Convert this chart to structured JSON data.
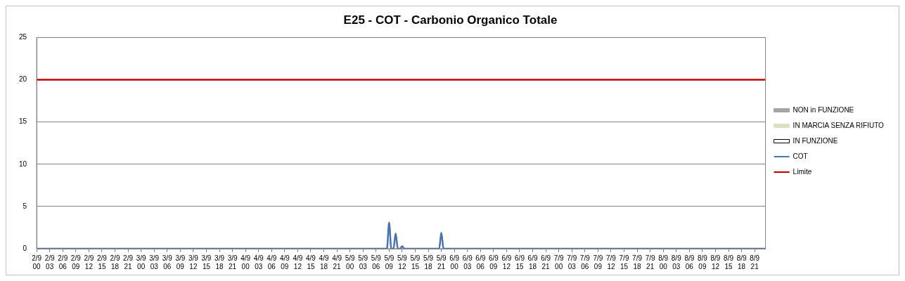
{
  "chart_data": {
    "type": "line",
    "title": "E25 - COT - Carbonio Organico Totale",
    "categories": [
      "2/9\n00",
      null,
      null,
      null,
      null,
      null,
      "2/9\n03",
      null,
      null,
      null,
      null,
      null,
      "2/9\n06",
      null,
      null,
      null,
      null,
      null,
      "2/9\n09",
      null,
      null,
      null,
      null,
      null,
      "2/9\n12",
      null,
      null,
      null,
      null,
      null,
      "2/9\n15",
      null,
      null,
      null,
      null,
      null,
      "2/9\n18",
      null,
      null,
      null,
      null,
      null,
      "2/9\n21",
      null,
      null,
      null,
      null,
      null,
      "3/9\n00",
      null,
      null,
      null,
      null,
      null,
      "3/9\n03",
      null,
      null,
      null,
      null,
      null,
      "3/9\n06",
      null,
      null,
      null,
      null,
      null,
      "3/9\n09",
      null,
      null,
      null,
      null,
      null,
      "3/9\n12",
      null,
      null,
      null,
      null,
      null,
      "3/9\n15",
      null,
      null,
      null,
      null,
      null,
      "3/9\n18",
      null,
      null,
      null,
      null,
      null,
      "3/9\n21",
      null,
      null,
      null,
      null,
      null,
      "4/9\n00",
      null,
      null,
      null,
      null,
      null,
      "4/9\n03",
      null,
      null,
      null,
      null,
      null,
      "4/9\n06",
      null,
      null,
      null,
      null,
      null,
      "4/9\n09",
      null,
      null,
      null,
      null,
      null,
      "4/9\n12",
      null,
      null,
      null,
      null,
      null,
      "4/9\n15",
      null,
      null,
      null,
      null,
      null,
      "4/9\n18",
      null,
      null,
      null,
      null,
      null,
      "4/9\n21",
      null,
      null,
      null,
      null,
      null,
      "5/9\n00",
      null,
      null,
      null,
      null,
      null,
      "5/9\n03",
      null,
      null,
      null,
      null,
      null,
      "5/9\n06",
      null,
      null,
      null,
      null,
      null,
      "5/9\n09",
      null,
      null,
      null,
      null,
      null,
      "5/9\n12",
      null,
      null,
      null,
      null,
      null,
      "5/9\n15",
      null,
      null,
      null,
      null,
      null,
      "5/9\n18",
      null,
      null,
      null,
      null,
      null,
      "5/9\n21",
      null,
      null,
      null,
      null,
      null,
      "6/9\n00",
      null,
      null,
      null,
      null,
      null,
      "6/9\n03",
      null,
      null,
      null,
      null,
      null,
      "6/9\n06",
      null,
      null,
      null,
      null,
      null,
      "6/9\n09",
      null,
      null,
      null,
      null,
      null,
      "6/9\n12",
      null,
      null,
      null,
      null,
      null,
      "6/9\n15",
      null,
      null,
      null,
      null,
      null,
      "6/9\n18",
      null,
      null,
      null,
      null,
      null,
      "6/9\n21",
      null,
      null,
      null,
      null,
      null,
      "7/9\n00",
      null,
      null,
      null,
      null,
      null,
      "7/9\n03",
      null,
      null,
      null,
      null,
      null,
      "7/9\n06",
      null,
      null,
      null,
      null,
      null,
      "7/9\n09",
      null,
      null,
      null,
      null,
      null,
      "7/9\n12",
      null,
      null,
      null,
      null,
      null,
      "7/9\n15",
      null,
      null,
      null,
      null,
      null,
      "7/9\n18",
      null,
      null,
      null,
      null,
      null,
      "7/9\n21",
      null,
      null,
      null,
      null,
      null,
      "8/9\n00",
      null,
      null,
      null,
      null,
      null,
      "8/9\n03",
      null,
      null,
      null,
      null,
      null,
      "8/9\n06",
      null,
      null,
      null,
      null,
      null,
      "8/9\n09",
      null,
      null,
      null,
      null,
      null,
      "8/9\n12",
      null,
      null,
      null,
      null,
      null,
      "8/9\n15",
      null,
      null,
      null,
      null,
      null,
      "8/9\n18",
      null,
      null,
      null,
      null,
      null,
      "8/9\n21",
      null,
      null,
      null,
      null,
      null
    ],
    "series": [
      {
        "name": "NON in FUNZIONE",
        "type": "area",
        "color": "#a6a6a6",
        "values": [
          null,
          null,
          null,
          null,
          null,
          null,
          null,
          null,
          null,
          null,
          null,
          null,
          null,
          null,
          null,
          null,
          null,
          null,
          null,
          null,
          null,
          null,
          null,
          null,
          null,
          null,
          null,
          null,
          null,
          null,
          null,
          null,
          null,
          null,
          null,
          null,
          null,
          null,
          null,
          null,
          null,
          null,
          null,
          null,
          null,
          null,
          null,
          null,
          null,
          null,
          null,
          null,
          null,
          null,
          null,
          null,
          null,
          null,
          null,
          null,
          null,
          null,
          null,
          null,
          null,
          null,
          null,
          null,
          null,
          null,
          null,
          null,
          null,
          null,
          null,
          null,
          null,
          null,
          null,
          null,
          null,
          null,
          null,
          null,
          null,
          null,
          null,
          null,
          null,
          null,
          null,
          null,
          null,
          null,
          null,
          null,
          null,
          null,
          null,
          null,
          null,
          null,
          null,
          null,
          null,
          null,
          null,
          null,
          null,
          null,
          null,
          null,
          null,
          null,
          null,
          null,
          null,
          null,
          null,
          null,
          null,
          null,
          null,
          null,
          null,
          null,
          null,
          null,
          null,
          null,
          null,
          null,
          null,
          null,
          null,
          null,
          null,
          null,
          null,
          null,
          null,
          null,
          null,
          null,
          null,
          null,
          null,
          null,
          null,
          null,
          null,
          null,
          null,
          null,
          null,
          null,
          null,
          null,
          null,
          null,
          null,
          null,
          null,
          null,
          null,
          null,
          null,
          null,
          null,
          null,
          null,
          null,
          null,
          null,
          null,
          null,
          null,
          null,
          null,
          null,
          null,
          null,
          null,
          null,
          null,
          null,
          null,
          null,
          null,
          null,
          null,
          null,
          null,
          null,
          null,
          null,
          null,
          null,
          null,
          null,
          null,
          null,
          null,
          null,
          null,
          null,
          null,
          null,
          null,
          null,
          null,
          null,
          null,
          null,
          null,
          null,
          null,
          null,
          null,
          null,
          null,
          null,
          null,
          null,
          null,
          null,
          null,
          null,
          null,
          null,
          null,
          null,
          null,
          null,
          null,
          null,
          null,
          null,
          null,
          null,
          null,
          null,
          null,
          null,
          null,
          null,
          null,
          null,
          null,
          null,
          null,
          null,
          null,
          null,
          null,
          null,
          null,
          null,
          null,
          null,
          null,
          null,
          null,
          null,
          null,
          null,
          null,
          null,
          null,
          null,
          null,
          null,
          null,
          null,
          null,
          null,
          null,
          null,
          null,
          null,
          null,
          null,
          null,
          null,
          null,
          null,
          null,
          null,
          null,
          null,
          null,
          null,
          null,
          null,
          null,
          null,
          null,
          null,
          null,
          null,
          null,
          null,
          null,
          null,
          null,
          null,
          null,
          null,
          null,
          null,
          null,
          null,
          null,
          null,
          null,
          null,
          null,
          null,
          null,
          null,
          null,
          null,
          null,
          null,
          null,
          null,
          null,
          null,
          null,
          null,
          null,
          null,
          null,
          null,
          null,
          null
        ]
      },
      {
        "name": "IN MARCIA SENZA RIFIUTO",
        "type": "area",
        "color": "#d7e4bd",
        "values": [
          null,
          null,
          null,
          null,
          null,
          null,
          null,
          null,
          null,
          null,
          null,
          null,
          null,
          null,
          null,
          null,
          null,
          null,
          null,
          null,
          null,
          null,
          null,
          null,
          null,
          null,
          null,
          null,
          null,
          null,
          null,
          null,
          null,
          null,
          null,
          null,
          null,
          null,
          null,
          null,
          null,
          null,
          null,
          null,
          null,
          null,
          null,
          null,
          null,
          null,
          null,
          null,
          null,
          null,
          null,
          null,
          null,
          null,
          null,
          null,
          null,
          null,
          null,
          null,
          null,
          null,
          null,
          null,
          null,
          null,
          null,
          null,
          null,
          null,
          null,
          null,
          null,
          null,
          null,
          null,
          null,
          null,
          null,
          null,
          null,
          null,
          null,
          null,
          null,
          null,
          null,
          null,
          null,
          null,
          null,
          null,
          null,
          null,
          null,
          null,
          null,
          null,
          null,
          null,
          null,
          null,
          null,
          null,
          null,
          null,
          null,
          null,
          null,
          null,
          null,
          null,
          null,
          null,
          null,
          null,
          null,
          null,
          null,
          null,
          null,
          null,
          null,
          null,
          null,
          null,
          null,
          null,
          null,
          null,
          null,
          null,
          null,
          null,
          null,
          null,
          null,
          null,
          null,
          null,
          null,
          null,
          null,
          null,
          null,
          null,
          null,
          null,
          null,
          null,
          null,
          null,
          null,
          null,
          null,
          null,
          null,
          null,
          null,
          null,
          null,
          null,
          null,
          null,
          null,
          null,
          null,
          null,
          null,
          null,
          null,
          null,
          null,
          null,
          null,
          null,
          null,
          null,
          null,
          null,
          null,
          null,
          null,
          null,
          null,
          null,
          null,
          null,
          null,
          null,
          null,
          null,
          null,
          null,
          null,
          null,
          null,
          null,
          null,
          null,
          null,
          null,
          null,
          null,
          null,
          null,
          null,
          null,
          null,
          null,
          null,
          null,
          null,
          null,
          null,
          null,
          null,
          null,
          null,
          null,
          null,
          null,
          null,
          null,
          null,
          null,
          null,
          null,
          null,
          null,
          null,
          null,
          null,
          null,
          null,
          null,
          null,
          null,
          null,
          null,
          null,
          null,
          null,
          null,
          null,
          null,
          null,
          null,
          null,
          null,
          null,
          null,
          null,
          null,
          null,
          null,
          null,
          null,
          null,
          null,
          null,
          null,
          null,
          null,
          null,
          null,
          null,
          null,
          null,
          null,
          null,
          null,
          null,
          null,
          null,
          null,
          null,
          null,
          null,
          null,
          null,
          null,
          null,
          null,
          null,
          null,
          null,
          null,
          null,
          null,
          null,
          null,
          null,
          null,
          null,
          null,
          null,
          null,
          null,
          null,
          null,
          null,
          null,
          null,
          null,
          null,
          null,
          null,
          null,
          null,
          null,
          null,
          null,
          null,
          null,
          null,
          null,
          null,
          null,
          null,
          null,
          null,
          null,
          null,
          null,
          null,
          null,
          null,
          null,
          null,
          null,
          null
        ]
      },
      {
        "name": "IN FUNZIONE",
        "type": "area",
        "color": "#ffffff",
        "values": [
          null,
          null,
          null,
          null,
          null,
          null,
          null,
          null,
          null,
          null,
          null,
          null,
          null,
          null,
          null,
          null,
          null,
          null,
          null,
          null,
          null,
          null,
          null,
          null,
          null,
          null,
          null,
          null,
          null,
          null,
          null,
          null,
          null,
          null,
          null,
          null,
          null,
          null,
          null,
          null,
          null,
          null,
          null,
          null,
          null,
          null,
          null,
          null,
          null,
          null,
          null,
          null,
          null,
          null,
          null,
          null,
          null,
          null,
          null,
          null,
          null,
          null,
          null,
          null,
          null,
          null,
          null,
          null,
          null,
          null,
          null,
          null,
          null,
          null,
          null,
          null,
          null,
          null,
          null,
          null,
          null,
          null,
          null,
          null,
          null,
          null,
          null,
          null,
          null,
          null,
          null,
          null,
          null,
          null,
          null,
          null,
          null,
          null,
          null,
          null,
          null,
          null,
          null,
          null,
          null,
          null,
          null,
          null,
          null,
          null,
          null,
          null,
          null,
          null,
          null,
          null,
          null,
          null,
          null,
          null,
          null,
          null,
          null,
          null,
          null,
          null,
          null,
          null,
          null,
          null,
          null,
          null,
          null,
          null,
          null,
          null,
          null,
          null,
          null,
          null,
          null,
          null,
          null,
          null,
          null,
          null,
          null,
          null,
          null,
          null,
          null,
          null,
          null,
          null,
          null,
          null,
          null,
          null,
          null,
          null,
          null,
          null,
          null,
          null,
          null,
          null,
          null,
          null,
          null,
          null,
          null,
          null,
          null,
          null,
          null,
          null,
          null,
          null,
          null,
          null,
          null,
          null,
          null,
          null,
          null,
          null,
          null,
          null,
          null,
          null,
          null,
          null,
          null,
          null,
          null,
          null,
          null,
          null,
          null,
          null,
          null,
          null,
          null,
          null,
          null,
          null,
          null,
          null,
          null,
          null,
          null,
          null,
          null,
          null,
          null,
          null,
          null,
          null,
          null,
          null,
          null,
          null,
          null,
          null,
          null,
          null,
          null,
          null,
          null,
          null,
          null,
          null,
          null,
          null,
          null,
          null,
          null,
          null,
          null,
          null,
          null,
          null,
          null,
          null,
          null,
          null,
          null,
          null,
          null,
          null,
          null,
          null,
          null,
          null,
          null,
          null,
          null,
          null,
          null,
          null,
          null,
          null,
          null,
          null,
          null,
          null,
          null,
          null,
          null,
          null,
          null,
          null,
          null,
          null,
          null,
          null,
          null,
          null,
          null,
          null,
          null,
          null,
          null,
          null,
          null,
          null,
          null,
          null,
          null,
          null,
          null,
          null,
          null,
          null,
          null,
          null,
          null,
          null,
          null,
          null,
          null,
          null,
          null,
          null,
          null,
          null,
          null,
          null,
          null,
          null,
          null,
          null,
          null,
          null,
          null,
          null,
          null,
          null,
          null,
          null,
          null,
          null,
          null,
          null,
          null,
          null,
          null,
          null,
          null,
          null,
          null,
          null,
          null,
          null,
          null,
          null
        ]
      },
      {
        "name": "COT",
        "color": "#4672b0",
        "values": [
          0,
          0,
          0,
          0,
          0,
          0,
          0,
          0,
          0,
          0,
          0,
          0,
          0,
          0,
          0,
          0,
          0,
          0,
          0,
          0,
          0,
          0,
          0,
          0,
          0,
          0,
          0,
          0,
          0,
          0,
          0,
          0,
          0,
          0,
          0,
          0,
          0,
          0,
          0,
          0,
          0,
          0,
          0,
          0,
          0,
          0,
          0,
          0,
          0,
          0,
          0,
          0,
          0,
          0,
          0,
          0,
          0,
          0,
          0,
          0,
          0,
          0,
          0,
          0,
          0,
          0,
          0,
          0,
          0,
          0,
          0,
          0,
          0,
          0,
          0,
          0,
          0,
          0,
          0,
          0,
          0,
          0,
          0,
          0,
          0,
          0,
          0,
          0,
          0,
          0,
          0,
          0,
          0,
          0,
          0,
          0,
          0,
          0,
          0,
          0,
          0,
          0,
          0,
          0,
          0,
          0,
          0,
          0,
          0,
          0,
          0,
          0,
          0,
          0,
          0,
          0,
          0,
          0,
          0,
          0,
          0,
          0,
          0,
          0,
          0,
          0,
          0,
          0,
          0,
          0,
          0,
          0,
          0,
          0,
          0,
          0,
          0,
          0,
          0,
          0,
          0,
          0,
          0,
          0,
          0,
          0,
          0,
          0,
          0,
          0,
          0,
          0,
          0,
          0,
          0,
          0,
          0,
          0,
          0,
          0,
          0,
          0,
          3.1,
          0,
          0,
          1.8,
          0,
          0,
          0.3,
          0,
          0,
          0,
          0,
          0,
          0,
          0,
          0,
          0,
          0,
          0,
          0,
          0,
          0,
          0,
          0,
          0,
          1.9,
          0,
          0,
          0,
          0,
          0,
          0,
          0,
          0,
          0,
          0,
          0,
          0,
          0,
          0,
          0,
          0,
          0,
          0,
          0,
          0,
          0,
          0,
          0,
          0,
          0,
          0,
          0,
          0,
          0,
          0,
          0,
          0,
          0,
          0,
          0,
          0,
          0,
          0,
          0,
          0,
          0,
          0,
          0,
          0,
          0,
          0,
          0,
          0,
          0,
          0,
          0,
          0,
          0,
          0,
          0,
          0,
          0,
          0,
          0,
          0,
          0,
          0,
          0,
          0,
          0,
          0,
          0,
          0,
          0,
          0,
          0,
          0,
          0,
          0,
          0,
          0,
          0,
          0,
          0,
          0,
          0,
          0,
          0,
          0,
          0,
          0,
          0,
          0,
          0,
          0,
          0,
          0,
          0,
          0,
          0,
          0,
          0,
          0,
          0,
          0,
          0,
          0,
          0,
          0,
          0,
          0,
          0,
          0,
          0,
          0,
          0,
          0,
          0,
          0,
          0,
          0,
          0,
          0,
          0,
          0,
          0,
          0,
          0,
          0,
          0,
          0,
          0,
          0,
          0,
          0,
          0,
          0,
          0,
          0,
          0,
          0,
          0,
          0,
          0,
          0,
          0,
          0,
          0,
          0,
          0,
          0,
          0,
          0,
          0
        ]
      },
      {
        "name": "Limite",
        "color": "#c00000",
        "values": [
          20,
          20,
          20,
          20,
          20,
          20,
          20,
          20,
          20,
          20,
          20,
          20,
          20,
          20,
          20,
          20,
          20,
          20,
          20,
          20,
          20,
          20,
          20,
          20,
          20,
          20,
          20,
          20,
          20,
          20,
          20,
          20,
          20,
          20,
          20,
          20,
          20,
          20,
          20,
          20,
          20,
          20,
          20,
          20,
          20,
          20,
          20,
          20,
          20,
          20,
          20,
          20,
          20,
          20,
          20,
          20,
          20,
          20,
          20,
          20,
          20,
          20,
          20,
          20,
          20,
          20,
          20,
          20,
          20,
          20,
          20,
          20,
          20,
          20,
          20,
          20,
          20,
          20,
          20,
          20,
          20,
          20,
          20,
          20,
          20,
          20,
          20,
          20,
          20,
          20,
          20,
          20,
          20,
          20,
          20,
          20,
          20,
          20,
          20,
          20,
          20,
          20,
          20,
          20,
          20,
          20,
          20,
          20,
          20,
          20,
          20,
          20,
          20,
          20,
          20,
          20,
          20,
          20,
          20,
          20,
          20,
          20,
          20,
          20,
          20,
          20,
          20,
          20,
          20,
          20,
          20,
          20,
          20,
          20,
          20,
          20,
          20,
          20,
          20,
          20,
          20,
          20,
          20,
          20,
          20,
          20,
          20,
          20,
          20,
          20,
          20,
          20,
          20,
          20,
          20,
          20,
          20,
          20,
          20,
          20,
          20,
          20,
          20,
          20,
          20,
          20,
          20,
          20,
          20,
          20,
          20,
          20,
          20,
          20,
          20,
          20,
          20,
          20,
          20,
          20,
          20,
          20,
          20,
          20,
          20,
          20,
          20,
          20,
          20,
          20,
          20,
          20,
          20,
          20,
          20,
          20,
          20,
          20,
          20,
          20,
          20,
          20,
          20,
          20,
          20,
          20,
          20,
          20,
          20,
          20,
          20,
          20,
          20,
          20,
          20,
          20,
          20,
          20,
          20,
          20,
          20,
          20,
          20,
          20,
          20,
          20,
          20,
          20,
          20,
          20,
          20,
          20,
          20,
          20,
          20,
          20,
          20,
          20,
          20,
          20,
          20,
          20,
          20,
          20,
          20,
          20,
          20,
          20,
          20,
          20,
          20,
          20,
          20,
          20,
          20,
          20,
          20,
          20,
          20,
          20,
          20,
          20,
          20,
          20,
          20,
          20,
          20,
          20,
          20,
          20,
          20,
          20,
          20,
          20,
          20,
          20,
          20,
          20,
          20,
          20,
          20,
          20,
          20,
          20,
          20,
          20,
          20,
          20,
          20,
          20,
          20,
          20,
          20,
          20,
          20,
          20,
          20,
          20,
          20,
          20,
          20,
          20,
          20,
          20,
          20,
          20,
          20,
          20,
          20,
          20,
          20,
          20,
          20,
          20,
          20,
          20,
          20,
          20,
          20,
          20,
          20,
          20,
          20,
          20,
          20,
          20,
          20,
          20,
          20,
          20,
          20,
          20,
          20,
          20,
          20,
          20
        ]
      }
    ],
    "ylim": [
      0,
      25
    ],
    "yticks": [
      0,
      5,
      10,
      15,
      20,
      25
    ],
    "grid": "y",
    "legend": "right",
    "marker": "none",
    "line_style": "solid"
  }
}
